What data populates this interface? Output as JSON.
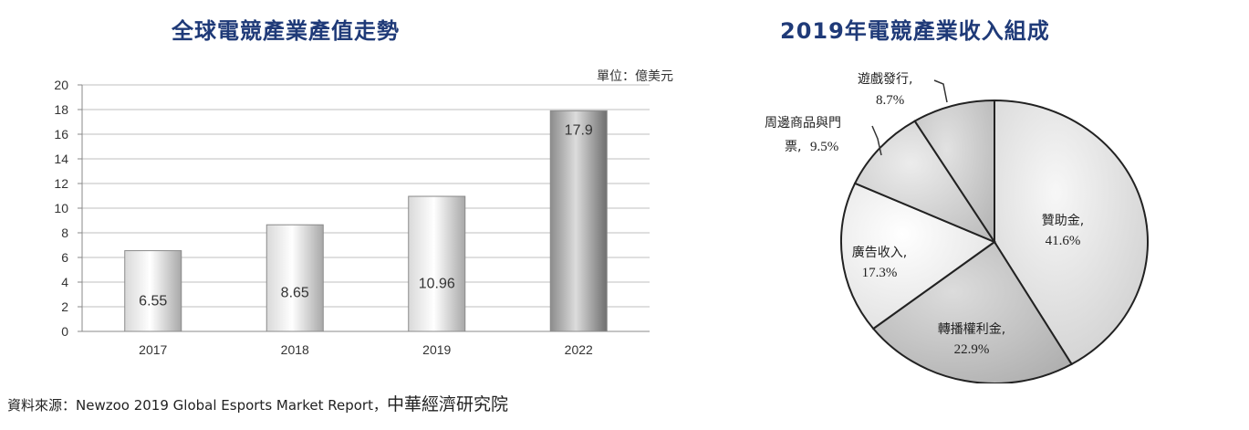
{
  "chart_data": [
    {
      "type": "bar",
      "title": "全球電競產業產值走勢",
      "unit_label": "單位：億美元",
      "categories": [
        "2017",
        "2018",
        "2019",
        "2022"
      ],
      "values": [
        6.55,
        8.65,
        10.96,
        17.9
      ],
      "value_labels": [
        "6.55",
        "8.65",
        "10.96",
        "17.9"
      ],
      "ylim": [
        0,
        20
      ],
      "yticks": [
        "0",
        "2",
        "4",
        "6",
        "8",
        "10",
        "12",
        "14",
        "16",
        "18",
        "20"
      ],
      "grid": true,
      "xlabel": "",
      "ylabel": ""
    },
    {
      "type": "pie",
      "title": "2019年電競產業收入組成",
      "slices": [
        {
          "label": "贊助金,",
          "percent_text": "41.6%",
          "value": 41.6
        },
        {
          "label": "轉播權利金,",
          "percent_text": "22.9%",
          "value": 22.9
        },
        {
          "label": "廣告收入,",
          "percent_text": "17.3%",
          "value": 17.3
        },
        {
          "label": "周邊商品與門",
          "label2": "票,",
          "percent_text": "9.5%",
          "value": 9.5
        },
        {
          "label": "遊戲發行,",
          "percent_text": "8.7%",
          "value": 8.7
        }
      ]
    }
  ],
  "source": {
    "text": "資料來源：Newzoo 2019 Global Esports Market Report，",
    "org": "中華經濟研究院"
  }
}
